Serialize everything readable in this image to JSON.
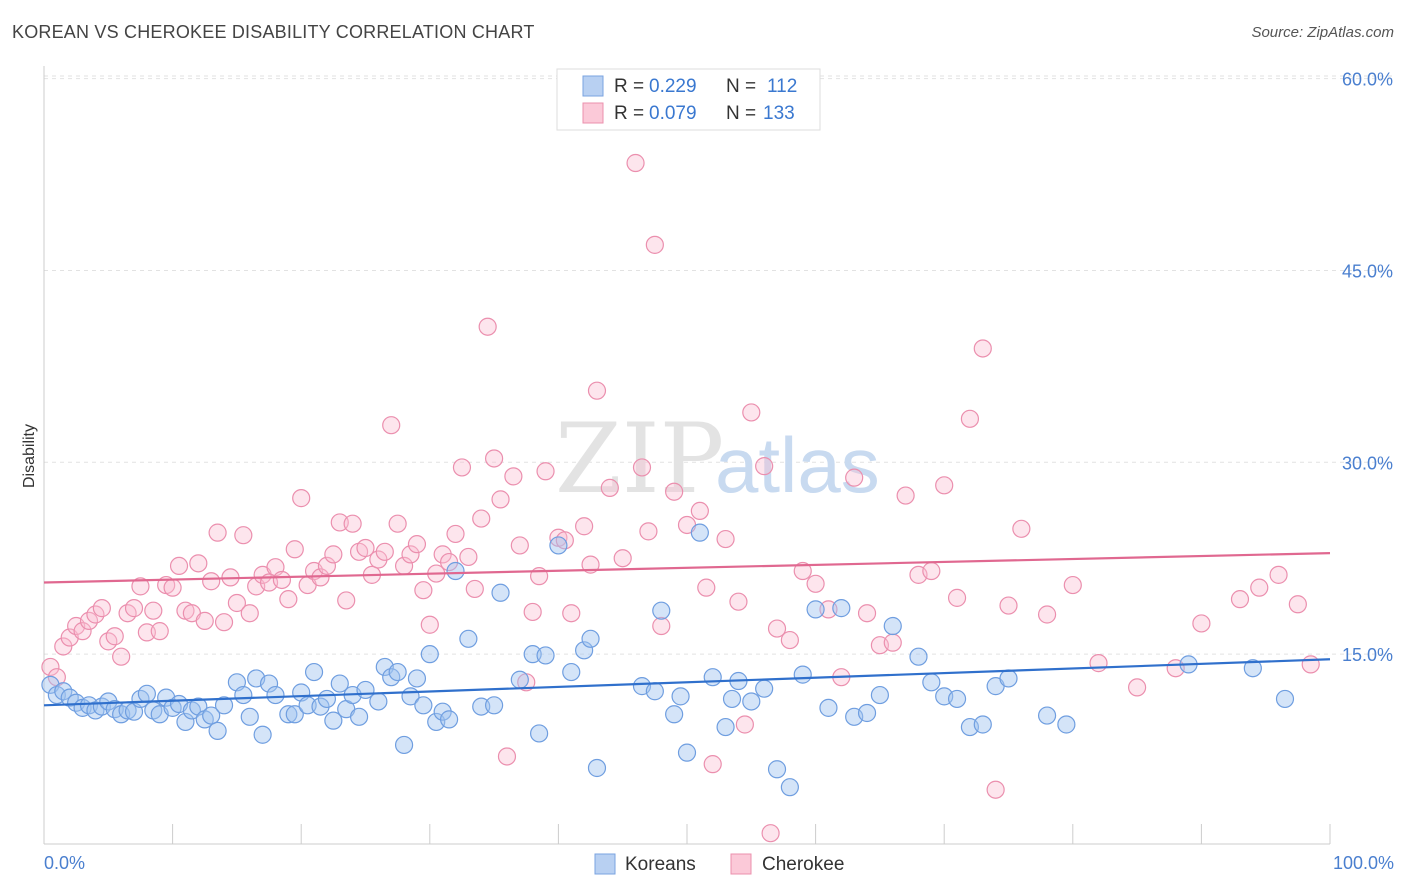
{
  "title": "KOREAN VS CHEROKEE DISABILITY CORRELATION CHART",
  "source": "Source: ZipAtlas.com",
  "watermark": {
    "zip": "ZIP",
    "atlas": "atlas"
  },
  "legend_top": [
    {
      "r_label": "R =",
      "r_value": "0.229",
      "n_label": "N =",
      "n_value": "112"
    },
    {
      "r_label": "R =",
      "r_value": "0.079",
      "n_label": "N =",
      "n_value": "133"
    }
  ],
  "colors": {
    "korean": "#5b8fd6",
    "cherokee": "#e888a8",
    "korean_line": "#3070cc",
    "cherokee_line": "#e06890",
    "axis_text": "#4a7fcf"
  },
  "chart_data": {
    "type": "scatter",
    "title": "KOREAN VS CHEROKEE DISABILITY CORRELATION CHART",
    "xlabel": "",
    "ylabel": "Disability",
    "xlim": [
      0,
      100
    ],
    "ylim": [
      0,
      62
    ],
    "x_tick_labels": [
      "0.0%",
      "100.0%"
    ],
    "y_ticks": [
      15,
      30,
      45,
      60
    ],
    "y_tick_labels": [
      "15.0%",
      "30.0%",
      "45.0%",
      "60.0%"
    ],
    "grid": true,
    "legend": "bottom-center",
    "series": [
      {
        "name": "Koreans",
        "r": 0.229,
        "n": 112,
        "trend": [
          [
            0,
            11.0
          ],
          [
            100,
            14.6
          ]
        ],
        "points": [
          [
            0.5,
            12.6
          ],
          [
            1.0,
            11.8
          ],
          [
            1.5,
            12.1
          ],
          [
            2.0,
            11.6
          ],
          [
            2.5,
            11.2
          ],
          [
            3.0,
            10.8
          ],
          [
            3.5,
            11.0
          ],
          [
            4.0,
            10.6
          ],
          [
            4.5,
            10.9
          ],
          [
            5.0,
            11.3
          ],
          [
            5.5,
            10.7
          ],
          [
            6.0,
            10.3
          ],
          [
            6.5,
            10.6
          ],
          [
            7.0,
            10.5
          ],
          [
            7.5,
            11.5
          ],
          [
            8.0,
            11.9
          ],
          [
            8.5,
            10.6
          ],
          [
            9.0,
            10.3
          ],
          [
            9.5,
            11.6
          ],
          [
            10.0,
            10.8
          ],
          [
            10.5,
            11.1
          ],
          [
            11.0,
            9.7
          ],
          [
            11.5,
            10.6
          ],
          [
            12.0,
            10.9
          ],
          [
            12.5,
            9.9
          ],
          [
            13.0,
            10.2
          ],
          [
            13.5,
            9.0
          ],
          [
            14.0,
            11.0
          ],
          [
            15.0,
            12.8
          ],
          [
            15.5,
            11.8
          ],
          [
            16.0,
            10.1
          ],
          [
            16.5,
            13.1
          ],
          [
            17.0,
            8.7
          ],
          [
            17.5,
            12.7
          ],
          [
            18.0,
            11.8
          ],
          [
            19.0,
            10.3
          ],
          [
            19.5,
            10.3
          ],
          [
            20.0,
            12.0
          ],
          [
            20.5,
            11.0
          ],
          [
            21.0,
            13.6
          ],
          [
            21.5,
            10.9
          ],
          [
            22.0,
            11.5
          ],
          [
            22.5,
            9.8
          ],
          [
            23.0,
            12.7
          ],
          [
            23.5,
            10.7
          ],
          [
            24.0,
            11.8
          ],
          [
            24.5,
            10.1
          ],
          [
            25.0,
            12.2
          ],
          [
            26.0,
            11.3
          ],
          [
            26.5,
            14.0
          ],
          [
            27.0,
            13.2
          ],
          [
            27.5,
            13.6
          ],
          [
            28.0,
            7.9
          ],
          [
            28.5,
            11.7
          ],
          [
            29.0,
            13.1
          ],
          [
            29.5,
            11.0
          ],
          [
            30.0,
            15.0
          ],
          [
            30.5,
            9.7
          ],
          [
            31.0,
            10.5
          ],
          [
            31.5,
            9.9
          ],
          [
            32.0,
            21.5
          ],
          [
            33.0,
            16.2
          ],
          [
            34.0,
            10.9
          ],
          [
            35.0,
            11.0
          ],
          [
            35.5,
            19.8
          ],
          [
            37.0,
            13.0
          ],
          [
            38.0,
            15.0
          ],
          [
            38.5,
            8.8
          ],
          [
            39.0,
            14.9
          ],
          [
            40.0,
            23.5
          ],
          [
            41.0,
            13.6
          ],
          [
            42.0,
            15.3
          ],
          [
            42.5,
            16.2
          ],
          [
            43.0,
            6.1
          ],
          [
            46.5,
            12.5
          ],
          [
            47.5,
            12.1
          ],
          [
            48.0,
            18.4
          ],
          [
            49.0,
            10.3
          ],
          [
            49.5,
            11.7
          ],
          [
            50.0,
            7.3
          ],
          [
            51.0,
            24.5
          ],
          [
            52.0,
            13.2
          ],
          [
            53.0,
            9.3
          ],
          [
            53.5,
            11.5
          ],
          [
            54.0,
            12.9
          ],
          [
            55.0,
            11.3
          ],
          [
            56.0,
            12.3
          ],
          [
            57.0,
            6.0
          ],
          [
            58.0,
            4.6
          ],
          [
            59.0,
            13.4
          ],
          [
            60.0,
            18.5
          ],
          [
            61.0,
            10.8
          ],
          [
            62.0,
            18.6
          ],
          [
            63.0,
            10.1
          ],
          [
            64.0,
            10.4
          ],
          [
            65.0,
            11.8
          ],
          [
            66.0,
            17.2
          ],
          [
            68.0,
            14.8
          ],
          [
            69.0,
            12.8
          ],
          [
            70.0,
            11.7
          ],
          [
            71.0,
            11.5
          ],
          [
            72.0,
            9.3
          ],
          [
            73.0,
            9.5
          ],
          [
            74.0,
            12.5
          ],
          [
            75.0,
            13.1
          ],
          [
            78.0,
            10.2
          ],
          [
            79.5,
            9.5
          ],
          [
            89.0,
            14.2
          ],
          [
            94.0,
            13.9
          ],
          [
            96.5,
            11.5
          ]
        ]
      },
      {
        "name": "Cherokee",
        "r": 0.079,
        "n": 133,
        "trend": [
          [
            0,
            20.6
          ],
          [
            100,
            22.9
          ]
        ],
        "points": [
          [
            0.5,
            14.0
          ],
          [
            1.0,
            13.2
          ],
          [
            1.5,
            15.6
          ],
          [
            2.0,
            16.3
          ],
          [
            2.5,
            17.2
          ],
          [
            3.0,
            16.8
          ],
          [
            3.5,
            17.6
          ],
          [
            4.0,
            18.1
          ],
          [
            4.5,
            18.6
          ],
          [
            5.0,
            16.0
          ],
          [
            5.5,
            16.4
          ],
          [
            6.0,
            14.8
          ],
          [
            6.5,
            18.2
          ],
          [
            7.0,
            18.6
          ],
          [
            7.5,
            20.3
          ],
          [
            8.0,
            16.7
          ],
          [
            8.5,
            18.4
          ],
          [
            9.0,
            16.8
          ],
          [
            9.5,
            20.4
          ],
          [
            10.0,
            20.2
          ],
          [
            10.5,
            21.9
          ],
          [
            11.0,
            18.4
          ],
          [
            11.5,
            18.2
          ],
          [
            12.0,
            22.1
          ],
          [
            12.5,
            17.6
          ],
          [
            13.0,
            20.7
          ],
          [
            13.5,
            24.5
          ],
          [
            14.0,
            17.5
          ],
          [
            14.5,
            21.0
          ],
          [
            15.0,
            19.0
          ],
          [
            15.5,
            24.3
          ],
          [
            16.0,
            18.2
          ],
          [
            16.5,
            20.3
          ],
          [
            17.0,
            21.2
          ],
          [
            17.5,
            20.6
          ],
          [
            18.0,
            21.8
          ],
          [
            18.5,
            20.8
          ],
          [
            19.0,
            19.3
          ],
          [
            19.5,
            23.2
          ],
          [
            20.0,
            27.2
          ],
          [
            20.5,
            20.4
          ],
          [
            21.0,
            21.5
          ],
          [
            21.5,
            21.0
          ],
          [
            22.0,
            21.9
          ],
          [
            22.5,
            22.8
          ],
          [
            23.0,
            25.3
          ],
          [
            23.5,
            19.2
          ],
          [
            24.0,
            25.2
          ],
          [
            24.5,
            23.0
          ],
          [
            25.0,
            23.3
          ],
          [
            25.5,
            21.2
          ],
          [
            26.0,
            22.4
          ],
          [
            26.5,
            23.0
          ],
          [
            27.0,
            32.9
          ],
          [
            27.5,
            25.2
          ],
          [
            28.0,
            21.9
          ],
          [
            28.5,
            22.8
          ],
          [
            29.0,
            23.6
          ],
          [
            29.5,
            20.0
          ],
          [
            30.0,
            17.3
          ],
          [
            30.5,
            21.3
          ],
          [
            31.0,
            22.8
          ],
          [
            31.5,
            22.2
          ],
          [
            32.0,
            24.4
          ],
          [
            32.5,
            29.6
          ],
          [
            33.0,
            22.6
          ],
          [
            33.5,
            20.1
          ],
          [
            34.0,
            25.6
          ],
          [
            34.5,
            40.6
          ],
          [
            35.0,
            30.3
          ],
          [
            35.5,
            27.1
          ],
          [
            36.0,
            7.0
          ],
          [
            36.5,
            28.9
          ],
          [
            37.0,
            23.5
          ],
          [
            37.5,
            12.8
          ],
          [
            38.0,
            18.3
          ],
          [
            38.5,
            21.1
          ],
          [
            39.0,
            29.3
          ],
          [
            40.0,
            24.1
          ],
          [
            40.5,
            23.9
          ],
          [
            41.0,
            18.2
          ],
          [
            42.0,
            25.0
          ],
          [
            42.5,
            22.0
          ],
          [
            43.0,
            35.6
          ],
          [
            44.0,
            28.0
          ],
          [
            45.0,
            22.5
          ],
          [
            46.0,
            53.4
          ],
          [
            46.5,
            29.6
          ],
          [
            47.0,
            24.6
          ],
          [
            47.5,
            47.0
          ],
          [
            48.0,
            17.2
          ],
          [
            49.0,
            27.7
          ],
          [
            50.0,
            25.1
          ],
          [
            51.0,
            26.2
          ],
          [
            51.5,
            20.2
          ],
          [
            52.0,
            6.4
          ],
          [
            53.0,
            24.0
          ],
          [
            54.0,
            19.1
          ],
          [
            55.0,
            33.9
          ],
          [
            56.0,
            29.7
          ],
          [
            57.0,
            17.0
          ],
          [
            58.0,
            16.1
          ],
          [
            59.0,
            21.5
          ],
          [
            60.0,
            20.5
          ],
          [
            61.0,
            18.5
          ],
          [
            62.0,
            13.2
          ],
          [
            63.0,
            28.8
          ],
          [
            64.0,
            18.2
          ],
          [
            65.0,
            15.7
          ],
          [
            66.0,
            15.9
          ],
          [
            67.0,
            27.4
          ],
          [
            68.0,
            21.2
          ],
          [
            69.0,
            21.5
          ],
          [
            70.0,
            28.2
          ],
          [
            71.0,
            19.4
          ],
          [
            72.0,
            33.4
          ],
          [
            73.0,
            38.9
          ],
          [
            74.0,
            4.4
          ],
          [
            75.0,
            18.8
          ],
          [
            76.0,
            24.8
          ],
          [
            78.0,
            18.1
          ],
          [
            80.0,
            20.4
          ],
          [
            82.0,
            14.3
          ],
          [
            85.0,
            12.4
          ],
          [
            88.0,
            13.9
          ],
          [
            90.0,
            17.4
          ],
          [
            93.0,
            19.3
          ],
          [
            94.5,
            20.2
          ],
          [
            96.0,
            21.2
          ],
          [
            97.5,
            18.9
          ],
          [
            98.5,
            14.2
          ],
          [
            54.5,
            9.5
          ],
          [
            56.5,
            1.0
          ]
        ]
      }
    ]
  },
  "legend_bottom": [
    {
      "label": "Koreans"
    },
    {
      "label": "Cherokee"
    }
  ]
}
